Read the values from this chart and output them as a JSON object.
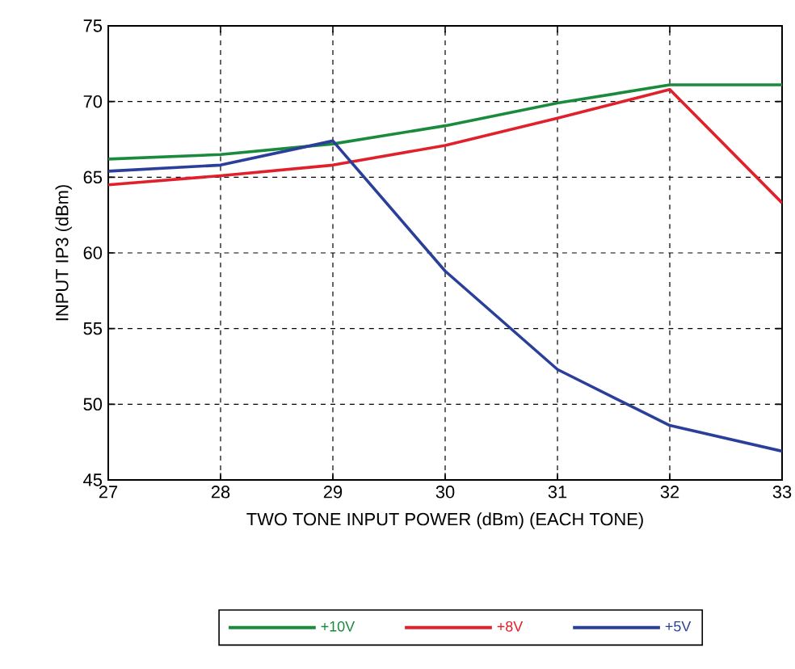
{
  "chart_data": {
    "type": "line",
    "xlabel": "TWO TONE INPUT POWER (dBm) (EACH TONE)",
    "ylabel": "INPUT IP3  (dBm)",
    "x": [
      27,
      28,
      29,
      30,
      31,
      32,
      33
    ],
    "series": [
      {
        "name": "+10V",
        "color": "#1a8a3c",
        "values": [
          66.2,
          66.5,
          67.2,
          68.4,
          69.9,
          71.1,
          71.1
        ]
      },
      {
        "name": "+8V",
        "color": "#e0202a",
        "values": [
          64.5,
          65.1,
          65.8,
          67.1,
          68.9,
          70.8,
          63.3
        ]
      },
      {
        "name": "+5V",
        "color": "#2a3f9a",
        "values": [
          65.4,
          65.8,
          67.4,
          58.8,
          52.3,
          48.6,
          46.9
        ]
      }
    ],
    "xlim": [
      27,
      33
    ],
    "ylim": [
      45,
      75
    ],
    "xticks": [
      27,
      28,
      29,
      30,
      31,
      32,
      33
    ],
    "yticks": [
      45,
      50,
      55,
      60,
      65,
      70,
      75
    ],
    "grid": true,
    "legend": "bottom",
    "marker": "none",
    "line_style": "solid"
  }
}
